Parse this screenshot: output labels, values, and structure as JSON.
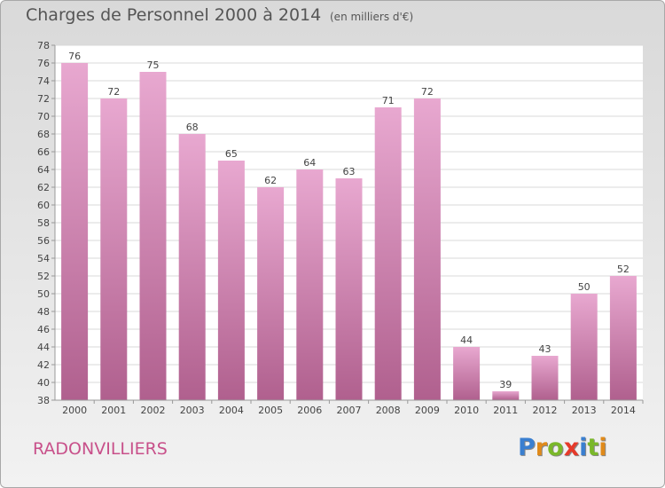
{
  "title": "Charges de Personnel 2000 à 2014",
  "subtitle": "(en milliers d'€)",
  "commune": "RADONVILLIERS",
  "logo": {
    "letters": [
      {
        "ch": "P",
        "color": "#3a7fd0"
      },
      {
        "ch": "r",
        "color": "#e08a1a"
      },
      {
        "ch": "o",
        "color": "#7ab82a"
      },
      {
        "ch": "x",
        "color": "#e63a2a"
      },
      {
        "ch": "i",
        "color": "#3a7fd0"
      },
      {
        "ch": "t",
        "color": "#7ab82a"
      },
      {
        "ch": "i",
        "color": "#e08a1a"
      }
    ]
  },
  "colors": {
    "bar_top": "#e8a8d0",
    "bar_bottom": "#b0608e",
    "text": "#555555",
    "commune": "#c8508a"
  },
  "chart_data": {
    "type": "bar",
    "title": "Charges de Personnel 2000 à 2014",
    "subtitle": "(en milliers d'€)",
    "categories": [
      "2000",
      "2001",
      "2002",
      "2003",
      "2004",
      "2005",
      "2006",
      "2007",
      "2008",
      "2009",
      "2010",
      "2011",
      "2012",
      "2013",
      "2014"
    ],
    "values": [
      76,
      72,
      75,
      68,
      65,
      62,
      64,
      63,
      71,
      72,
      44,
      39,
      43,
      50,
      52
    ],
    "ylim": [
      38,
      78
    ],
    "yticks": [
      38,
      40,
      42,
      44,
      46,
      48,
      50,
      52,
      54,
      56,
      58,
      60,
      62,
      64,
      66,
      68,
      70,
      72,
      74,
      76,
      78
    ],
    "grid": true,
    "data_labels": true
  }
}
